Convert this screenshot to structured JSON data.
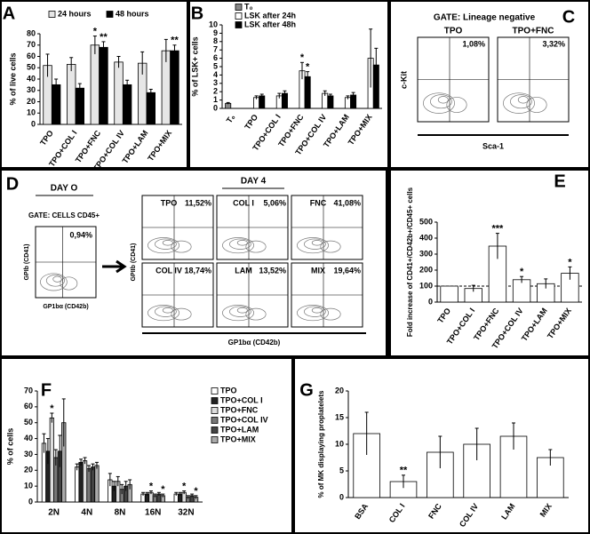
{
  "chart_data": [
    {
      "panel": "A",
      "type": "bar",
      "y_label": "% of live cells",
      "categories": [
        "TPO",
        "TPO+COL I",
        "TPO+FNC",
        "TPO+COL IV",
        "TPO+LAM",
        "TPO+MIX"
      ],
      "series": [
        {
          "name": "24 hours",
          "color": "#e6e6e6",
          "values": [
            52,
            53,
            70,
            55,
            54,
            65
          ],
          "errors": [
            10,
            6,
            8,
            5,
            10,
            10
          ],
          "significance": [
            null,
            null,
            "*",
            null,
            null,
            null
          ]
        },
        {
          "name": "48 hours",
          "color": "#000000",
          "values": [
            35,
            32,
            68,
            35,
            28,
            65
          ],
          "errors": [
            5,
            4,
            5,
            4,
            3,
            5
          ],
          "significance": [
            null,
            null,
            "**",
            null,
            null,
            "**"
          ]
        }
      ],
      "ylim": [
        0,
        80
      ],
      "yticks": [
        0,
        10,
        20,
        30,
        40,
        50,
        60,
        70,
        80
      ],
      "legend": "top"
    },
    {
      "panel": "B",
      "type": "bar",
      "y_label": "% of LSK+ cells",
      "categories": [
        "T₀",
        "TPO",
        "TPO+COL I",
        "TPO+FNC",
        "TPO+COL IV",
        "TPO+LAM",
        "TPO+MIX"
      ],
      "series": [
        {
          "name": "T₀",
          "color": "#888888",
          "values": [
            0.6,
            null,
            null,
            null,
            null,
            null,
            null
          ],
          "errors": [
            0.1,
            null,
            null,
            null,
            null,
            null,
            null
          ],
          "significance": [
            null,
            null,
            null,
            null,
            null,
            null,
            null
          ]
        },
        {
          "name": "LSK after 24h",
          "color": "#ffffff",
          "values": [
            null,
            1.3,
            1.5,
            4.5,
            1.8,
            1.3,
            6.0
          ],
          "errors": [
            null,
            0.2,
            0.3,
            1.0,
            0.3,
            0.2,
            3.5
          ],
          "significance": [
            null,
            null,
            null,
            "*",
            null,
            null,
            null
          ]
        },
        {
          "name": "LSK after 48h",
          "color": "#000000",
          "values": [
            null,
            1.5,
            1.8,
            3.8,
            1.5,
            1.6,
            5.2
          ],
          "errors": [
            null,
            0.2,
            0.3,
            0.6,
            0.2,
            0.3,
            2.0
          ],
          "significance": [
            null,
            null,
            null,
            "*",
            null,
            null,
            null
          ]
        }
      ],
      "ylim": [
        0,
        10
      ],
      "yticks": [
        0,
        1,
        2,
        3,
        4,
        5,
        6,
        7,
        8,
        9,
        10
      ],
      "legend": "top-right"
    },
    {
      "panel": "E",
      "type": "bar",
      "y_label": "Fold increase of CD41+/CD42b+/CD45+ cells",
      "categories": [
        "TPO",
        "TPO+COL I",
        "TPO+FNC",
        "TPO+COL IV",
        "TPO+LAM",
        "TPO+MIX"
      ],
      "color": "#ffffff",
      "values": [
        100,
        85,
        350,
        140,
        115,
        180
      ],
      "errors": [
        null,
        20,
        80,
        20,
        30,
        40
      ],
      "significance": [
        null,
        null,
        "***",
        "*",
        null,
        "*"
      ],
      "reference_line": 100,
      "ylim": [
        0,
        500
      ],
      "yticks": [
        0,
        100,
        200,
        300,
        400,
        500
      ]
    },
    {
      "panel": "F",
      "type": "bar",
      "y_label": "% of cells",
      "categories": [
        "2N",
        "4N",
        "8N",
        "16N",
        "32N"
      ],
      "series": [
        {
          "name": "TPO",
          "color": "#ffffff",
          "values": [
            37,
            22,
            14,
            5,
            5
          ],
          "errors": [
            6,
            2,
            4,
            1,
            1
          ],
          "significance": [
            null,
            null,
            null,
            null,
            null
          ]
        },
        {
          "name": "TPO+COL I",
          "color": "#222222",
          "values": [
            32,
            25,
            10,
            5,
            5
          ],
          "errors": [
            8,
            2,
            3,
            1,
            1
          ],
          "significance": [
            null,
            null,
            null,
            null,
            null
          ]
        },
        {
          "name": "TPO+FNC",
          "color": "#dddddd",
          "values": [
            53,
            26,
            13,
            6,
            6
          ],
          "errors": [
            3,
            2,
            3,
            1,
            1
          ],
          "significance": [
            "*",
            null,
            null,
            "*",
            "*"
          ]
        },
        {
          "name": "TPO+COL IV",
          "color": "#777777",
          "values": [
            28,
            21,
            8,
            4,
            3
          ],
          "errors": [
            5,
            2,
            3,
            1,
            1
          ],
          "significance": [
            null,
            null,
            null,
            null,
            null
          ]
        },
        {
          "name": "TPO+LAM",
          "color": "#444444",
          "values": [
            32,
            22,
            10,
            5,
            4
          ],
          "errors": [
            10,
            2,
            3,
            1,
            1
          ],
          "significance": [
            null,
            null,
            null,
            null,
            null
          ]
        },
        {
          "name": "TPO+MIX",
          "color": "#aaaaaa",
          "values": [
            50,
            23,
            11,
            4,
            3
          ],
          "errors": [
            15,
            2,
            3,
            1,
            1
          ],
          "significance": [
            null,
            null,
            null,
            "*",
            "*"
          ]
        }
      ],
      "ylim": [
        0,
        70
      ],
      "yticks": [
        0,
        10,
        20,
        30,
        40,
        50,
        60,
        70
      ],
      "legend": "right"
    },
    {
      "panel": "G",
      "type": "bar",
      "y_label": "% of MK displaying proplatelets",
      "categories": [
        "BSA",
        "COL I",
        "FNC",
        "COL IV",
        "LAM",
        "MIX"
      ],
      "color": "#ffffff",
      "values": [
        12,
        3,
        8.5,
        10,
        11.5,
        7.5
      ],
      "errors": [
        4,
        1.2,
        3,
        3,
        2.5,
        1.5
      ],
      "significance": [
        null,
        "**",
        null,
        null,
        null,
        null
      ],
      "ylim": [
        0,
        20
      ],
      "yticks": [
        0,
        5,
        10,
        15,
        20
      ]
    }
  ],
  "flow_panels": [
    {
      "panel": "C",
      "title": "GATE: Lineage negative",
      "y_label": "c-Kit",
      "x_label": "Sca-1",
      "plots": [
        {
          "name": "TPO",
          "percent": "1,08%"
        },
        {
          "name": "TPO+FNC",
          "percent": "3,32%"
        }
      ]
    },
    {
      "panel": "D",
      "day0": {
        "title": "DAY O",
        "gate": "GATE: CELLS CD45+",
        "percent": "0,94%",
        "y_label": "GPIb (CD41)",
        "x_label": "GP1bα (CD42b)"
      },
      "day4": {
        "title": "DAY 4",
        "y_label": "GPIIb (CD41)",
        "x_label": "GP1bα (CD42b)",
        "plots": [
          {
            "name": "TPO",
            "percent": "11,52%"
          },
          {
            "name": "COL I",
            "percent": "5,06%"
          },
          {
            "name": "FNC",
            "percent": "41,08%"
          },
          {
            "name": "COL IV",
            "percent": "18,74%"
          },
          {
            "name": "LAM",
            "percent": "13,52%"
          },
          {
            "name": "MIX",
            "percent": "19,64%"
          }
        ]
      }
    }
  ]
}
